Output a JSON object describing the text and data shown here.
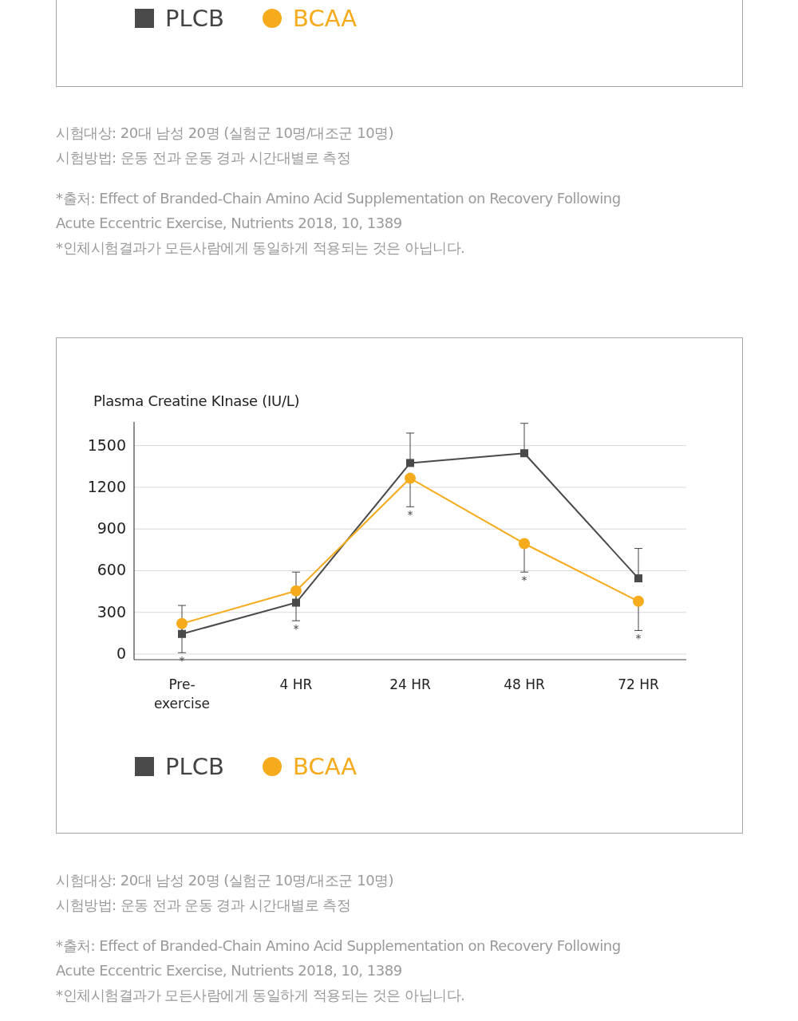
{
  "chart_data": [
    {
      "type": "other",
      "legend": "bottom",
      "series": [
        {
          "name": "PLCB",
          "color": "#4a4a4a",
          "marker": "square"
        },
        {
          "name": "BCAA",
          "color": "#f5ab1b",
          "marker": "circle"
        }
      ],
      "annotations": [
        "시험대상: 20대 남성 20명 (실험군 10명/대조군 10명)",
        "시험방법: 운동 전과 운동 경과 시간대별로 측정",
        "*출처: Effect of Branded-Chain Amino Acid Supplementation on Recovery Following Acute Eccentric Exercise, Nutrients 2018, 10, 1389",
        "*인체시험결과가 모든사람에게 동일하게 적용되는 것은 아닙니다."
      ]
    },
    {
      "type": "line",
      "ylabel": "Plasma Creatine KInase (IU/L)",
      "categories": [
        "Pre-exercise",
        "4 HR",
        "24 HR",
        "48 HR",
        "72 HR"
      ],
      "ylim": [
        -40,
        1670
      ],
      "yticks": [
        0,
        300,
        600,
        900,
        1200,
        1500
      ],
      "grid": "y",
      "legend": "bottom",
      "line_style": "solid",
      "series": [
        {
          "name": "PLCB",
          "color": "#4a4a4a",
          "marker": "square",
          "values": [
            145,
            370,
            1375,
            1445,
            545
          ],
          "errors": [
            [
              145,
              350
            ],
            [
              370,
              590
            ],
            [
              1375,
              1590
            ],
            [
              1445,
              1660
            ],
            [
              545,
              760
            ]
          ]
        },
        {
          "name": "BCAA",
          "color": "#f5ab1b",
          "marker": "circle",
          "values": [
            220,
            455,
            1265,
            795,
            380
          ],
          "errors": [
            [
              10,
              220
            ],
            [
              240,
              455
            ],
            [
              1060,
              1265
            ],
            [
              590,
              795
            ],
            [
              170,
              380
            ]
          ]
        }
      ],
      "annotations": [
        {
          "text": "*",
          "x": "Pre-exercise",
          "y": 10
        },
        {
          "text": "*",
          "x": "4 HR",
          "y": 240
        },
        {
          "text": "*",
          "x": "24 HR",
          "y": 1060
        },
        {
          "text": "*",
          "x": "48 HR",
          "y": 590
        },
        {
          "text": "*",
          "x": "72 HR",
          "y": 170
        },
        "시험대상: 20대 남성 20명 (실험군 10명/대조군 10명)",
        "시험방법: 운동 전과 운동 경과 시간대별로 측정",
        "*출처: Effect of Branded-Chain Amino Acid Supplementation on Recovery Following Acute Eccentric Exercise, Nutrients 2018, 10, 1389",
        "*인체시험결과가 모든사람에게 동일하게 적용되는 것은 아닙니다."
      ]
    }
  ]
}
